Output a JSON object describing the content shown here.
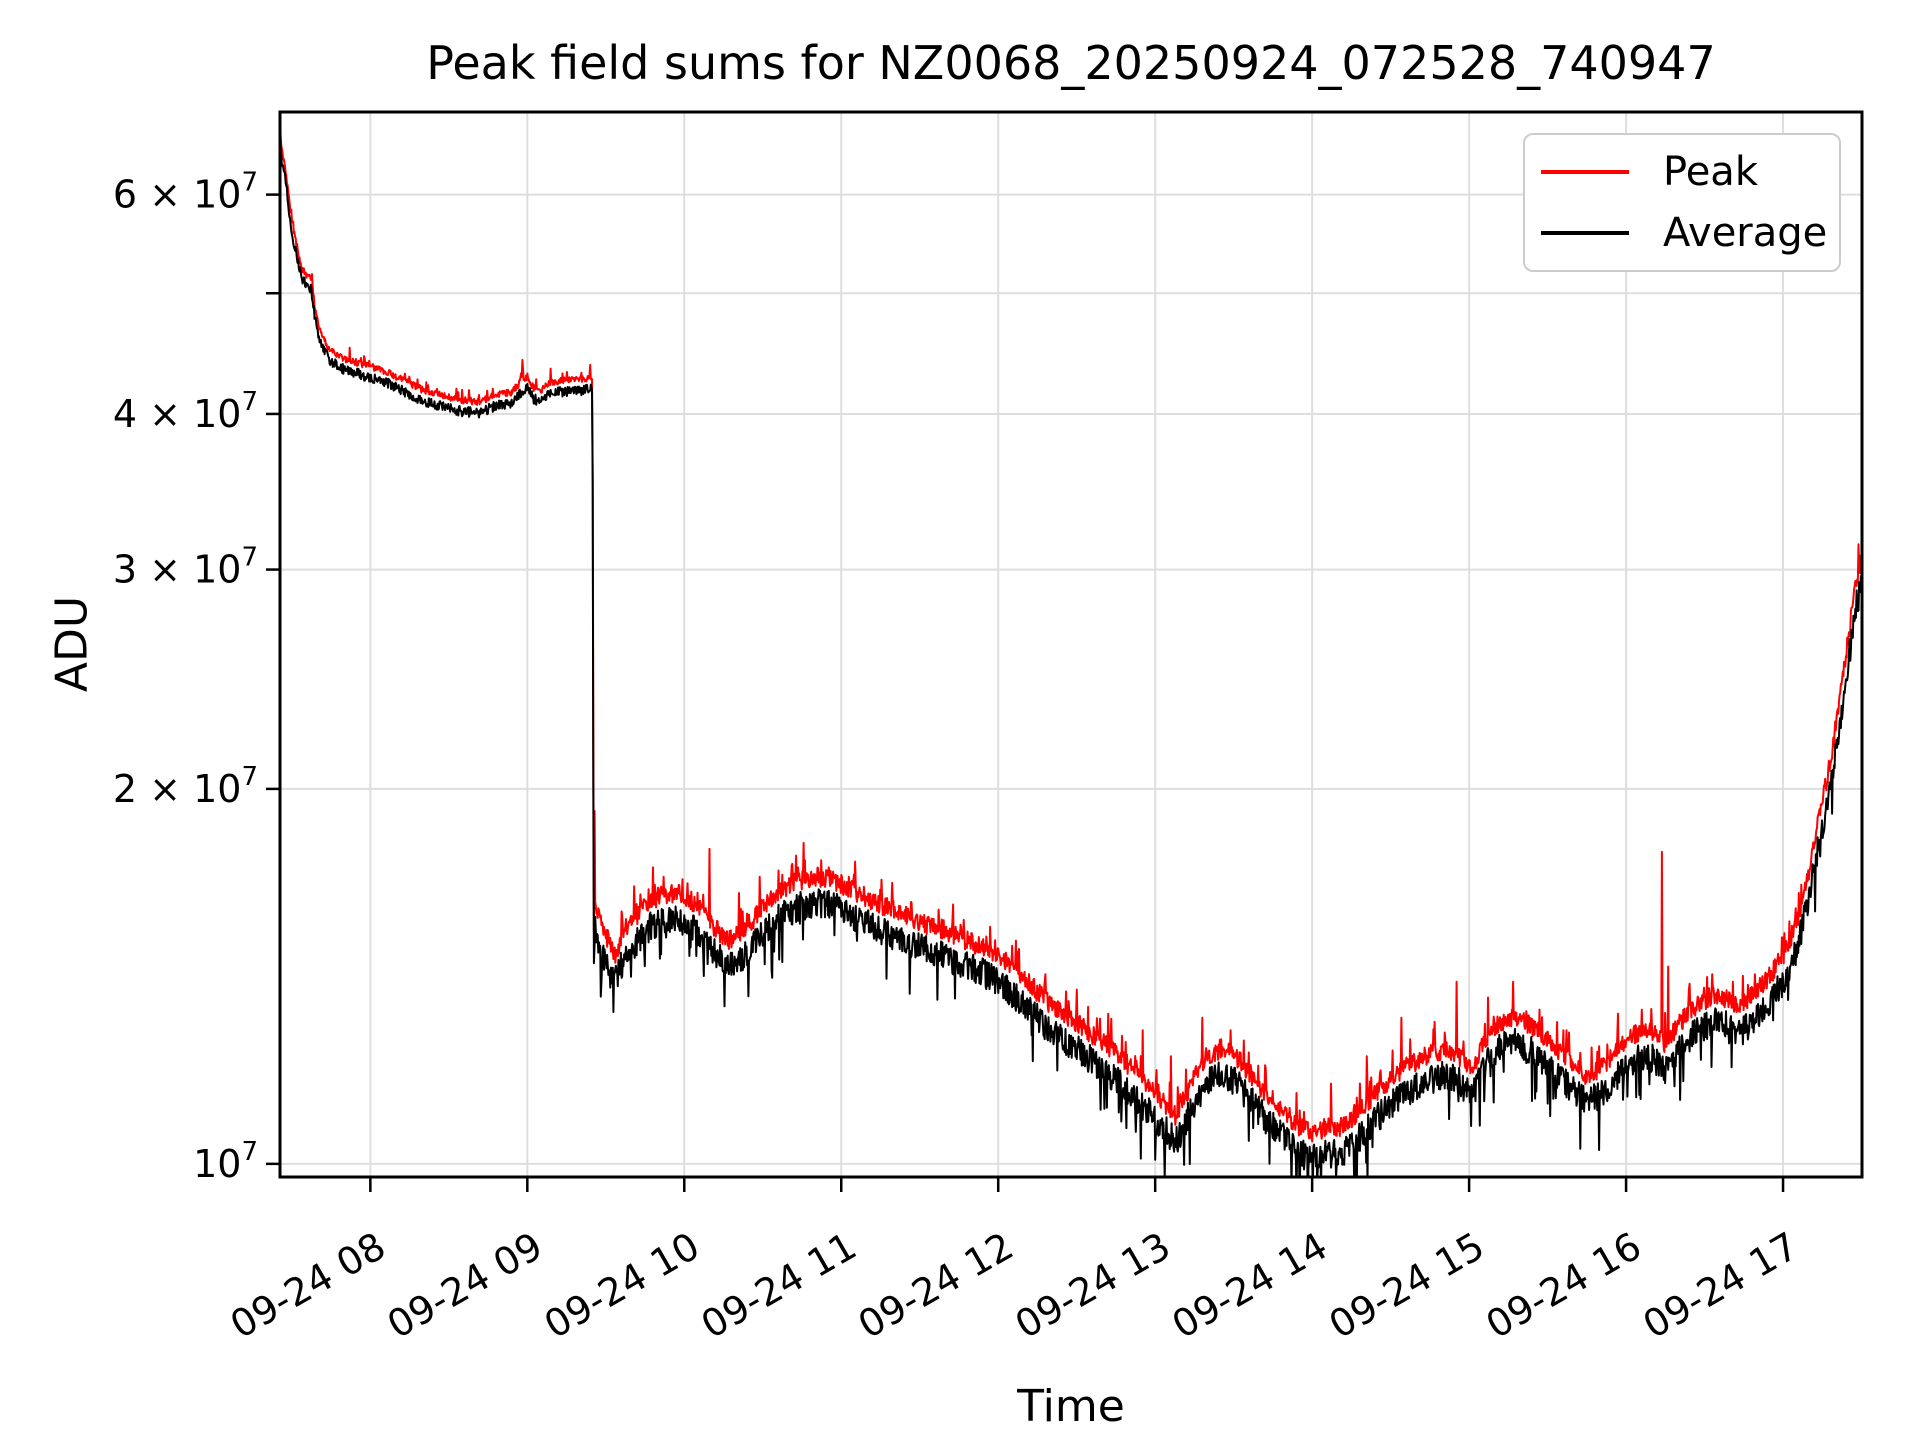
{
  "chart_data": {
    "type": "line",
    "title": "Peak field sums for NZ0068_20250924_072528_740947",
    "xlabel": "Time",
    "ylabel": "ADU",
    "grid": true,
    "yscale": "log",
    "ylim": [
      9760000,
      69900000
    ],
    "xlim_hours": [
      7.4244,
      17.503
    ],
    "data_end_hour": 17.5,
    "cliff_hour": 9.419,
    "colors": {
      "peak": "#ff0000",
      "average": "#000000",
      "grid": "#dedede",
      "spine": "#000000",
      "legend_border": "#cccccc"
    },
    "legend": {
      "position": "upper right",
      "entries": [
        {
          "label": "Peak",
          "color": "#ff0000"
        },
        {
          "label": "Average",
          "color": "#000000"
        }
      ]
    },
    "x_ticks": [
      {
        "hour": 8,
        "label": "09-24 08"
      },
      {
        "hour": 9,
        "label": "09-24 09"
      },
      {
        "hour": 10,
        "label": "09-24 10"
      },
      {
        "hour": 11,
        "label": "09-24 11"
      },
      {
        "hour": 12,
        "label": "09-24 12"
      },
      {
        "hour": 13,
        "label": "09-24 13"
      },
      {
        "hour": 14,
        "label": "09-24 14"
      },
      {
        "hour": 15,
        "label": "09-24 15"
      },
      {
        "hour": 16,
        "label": "09-24 16"
      },
      {
        "hour": 17,
        "label": "09-24 17"
      }
    ],
    "y_ticks": [
      {
        "value": 10000000,
        "base": "10",
        "exp": "7"
      },
      {
        "value": 20000000,
        "base": "2 × 10",
        "exp": "7"
      },
      {
        "value": 30000000,
        "base": "3 × 10",
        "exp": "7"
      },
      {
        "value": 40000000,
        "base": "4 × 10",
        "exp": "7"
      },
      {
        "value": 50000000,
        "base": "",
        "exp": ""
      },
      {
        "value": 60000000,
        "base": "6 × 10",
        "exp": "7"
      }
    ],
    "series": [
      {
        "name": "Peak",
        "color": "#ff0000",
        "derived_from": "Average",
        "offset_log10_before_cliff": 0.006,
        "offset_log10_after_cliff": 0.013,
        "spikes_e7": [
          [
            7.87,
            4.52
          ],
          [
            8.63,
            4.18
          ],
          [
            8.97,
            4.42
          ],
          [
            9.15,
            4.35
          ],
          [
            9.4,
            4.38
          ],
          [
            9.43,
            1.92
          ],
          [
            9.68,
            1.67
          ],
          [
            9.8,
            1.73
          ],
          [
            9.87,
            1.7
          ],
          [
            10.02,
            1.68
          ],
          [
            10.16,
            1.79
          ],
          [
            10.35,
            1.65
          ],
          [
            10.48,
            1.7
          ],
          [
            10.6,
            1.72
          ],
          [
            10.76,
            1.81
          ],
          [
            10.92,
            1.73
          ],
          [
            11.05,
            1.7
          ],
          [
            11.25,
            1.66
          ],
          [
            11.45,
            1.62
          ],
          [
            11.62,
            1.6
          ],
          [
            11.78,
            1.57
          ],
          [
            11.95,
            1.55
          ],
          [
            12.12,
            1.48
          ],
          [
            12.3,
            1.42
          ],
          [
            12.5,
            1.38
          ],
          [
            12.7,
            1.32
          ],
          [
            12.92,
            1.28
          ],
          [
            13.1,
            1.22
          ],
          [
            13.3,
            1.31
          ],
          [
            13.48,
            1.28
          ],
          [
            13.7,
            1.2
          ],
          [
            13.9,
            1.14
          ],
          [
            14.12,
            1.16
          ],
          [
            14.35,
            1.22
          ],
          [
            14.57,
            1.31
          ],
          [
            14.78,
            1.3
          ],
          [
            14.92,
            1.4
          ],
          [
            15.12,
            1.36
          ],
          [
            15.28,
            1.4
          ],
          [
            15.45,
            1.33
          ],
          [
            15.6,
            1.28
          ],
          [
            15.78,
            1.24
          ],
          [
            15.95,
            1.32
          ],
          [
            16.1,
            1.33
          ],
          [
            16.23,
            1.78
          ],
          [
            16.27,
            1.44
          ],
          [
            16.4,
            1.38
          ],
          [
            16.55,
            1.42
          ],
          [
            16.68,
            1.4
          ],
          [
            16.82,
            1.42
          ],
          [
            17.0,
            1.52
          ],
          [
            17.1,
            1.65
          ]
        ]
      },
      {
        "name": "Average",
        "color": "#000000",
        "anchors_e7": [
          [
            7.4244,
            6.95
          ],
          [
            7.43,
            6.42
          ],
          [
            7.445,
            6.3
          ],
          [
            7.457,
            6.2
          ],
          [
            7.47,
            6.0
          ],
          [
            7.49,
            5.72
          ],
          [
            7.512,
            5.5
          ],
          [
            7.54,
            5.28
          ],
          [
            7.565,
            5.13
          ],
          [
            7.59,
            5.07
          ],
          [
            7.625,
            5.03
          ],
          [
            7.645,
            4.8
          ],
          [
            7.67,
            4.62
          ],
          [
            7.7,
            4.5
          ],
          [
            7.74,
            4.42
          ],
          [
            7.79,
            4.37
          ],
          [
            7.85,
            4.33
          ],
          [
            7.92,
            4.31
          ],
          [
            8.0,
            4.28
          ],
          [
            8.1,
            4.24
          ],
          [
            8.2,
            4.18
          ],
          [
            8.33,
            4.1
          ],
          [
            8.45,
            4.06
          ],
          [
            8.58,
            4.02
          ],
          [
            8.7,
            4.01
          ],
          [
            8.8,
            4.06
          ],
          [
            8.9,
            4.08
          ],
          [
            8.97,
            4.18
          ],
          [
            9.0,
            4.2
          ],
          [
            9.04,
            4.11
          ],
          [
            9.09,
            4.1
          ],
          [
            9.15,
            4.16
          ],
          [
            9.25,
            4.17
          ],
          [
            9.35,
            4.18
          ],
          [
            9.415,
            4.2
          ],
          [
            9.423,
            1.45
          ],
          [
            9.432,
            1.55
          ],
          [
            9.44,
            1.5
          ],
          [
            9.46,
            1.52
          ],
          [
            9.48,
            1.46
          ],
          [
            9.52,
            1.44
          ],
          [
            9.56,
            1.4
          ],
          [
            9.62,
            1.47
          ],
          [
            9.7,
            1.51
          ],
          [
            9.78,
            1.55
          ],
          [
            9.88,
            1.57
          ],
          [
            9.98,
            1.57
          ],
          [
            10.08,
            1.54
          ],
          [
            10.18,
            1.48
          ],
          [
            10.28,
            1.44
          ],
          [
            10.38,
            1.47
          ],
          [
            10.5,
            1.53
          ],
          [
            10.62,
            1.58
          ],
          [
            10.73,
            1.61
          ],
          [
            10.85,
            1.62
          ],
          [
            10.95,
            1.61
          ],
          [
            11.08,
            1.58
          ],
          [
            11.2,
            1.55
          ],
          [
            11.35,
            1.52
          ],
          [
            11.5,
            1.49
          ],
          [
            11.65,
            1.47
          ],
          [
            11.8,
            1.44
          ],
          [
            11.92,
            1.42
          ],
          [
            12.0,
            1.4
          ],
          [
            12.15,
            1.35
          ],
          [
            12.3,
            1.29
          ],
          [
            12.45,
            1.25
          ],
          [
            12.6,
            1.21
          ],
          [
            12.75,
            1.17
          ],
          [
            12.9,
            1.12
          ],
          [
            13.05,
            1.07
          ],
          [
            13.13,
            1.04
          ],
          [
            13.22,
            1.1
          ],
          [
            13.32,
            1.16
          ],
          [
            13.42,
            1.18
          ],
          [
            13.52,
            1.16
          ],
          [
            13.62,
            1.12
          ],
          [
            13.72,
            1.08
          ],
          [
            13.82,
            1.05
          ],
          [
            13.92,
            1.02
          ],
          [
            14.0,
            1.01
          ],
          [
            14.1,
            1.02
          ],
          [
            14.2,
            1.02
          ],
          [
            14.3,
            1.05
          ],
          [
            14.42,
            1.09
          ],
          [
            14.55,
            1.13
          ],
          [
            14.7,
            1.16
          ],
          [
            14.85,
            1.18
          ],
          [
            14.95,
            1.16
          ],
          [
            15.02,
            1.13
          ],
          [
            15.1,
            1.2
          ],
          [
            15.2,
            1.24
          ],
          [
            15.3,
            1.25
          ],
          [
            15.4,
            1.23
          ],
          [
            15.5,
            1.2
          ],
          [
            15.62,
            1.16
          ],
          [
            15.75,
            1.12
          ],
          [
            15.85,
            1.14
          ],
          [
            15.95,
            1.18
          ],
          [
            16.05,
            1.21
          ],
          [
            16.15,
            1.22
          ],
          [
            16.25,
            1.19
          ],
          [
            16.35,
            1.24
          ],
          [
            16.45,
            1.28
          ],
          [
            16.55,
            1.3
          ],
          [
            16.65,
            1.29
          ],
          [
            16.72,
            1.27
          ],
          [
            16.8,
            1.3
          ],
          [
            16.9,
            1.34
          ],
          [
            17.0,
            1.4
          ],
          [
            17.08,
            1.48
          ],
          [
            17.15,
            1.6
          ],
          [
            17.22,
            1.78
          ],
          [
            17.3,
            2.0
          ],
          [
            17.36,
            2.25
          ],
          [
            17.42,
            2.55
          ],
          [
            17.47,
            2.82
          ],
          [
            17.5,
            2.92
          ]
        ],
        "noise_log10_before_cliff": 0.0045,
        "noise_log10_after_cliff": 0.013
      }
    ]
  }
}
